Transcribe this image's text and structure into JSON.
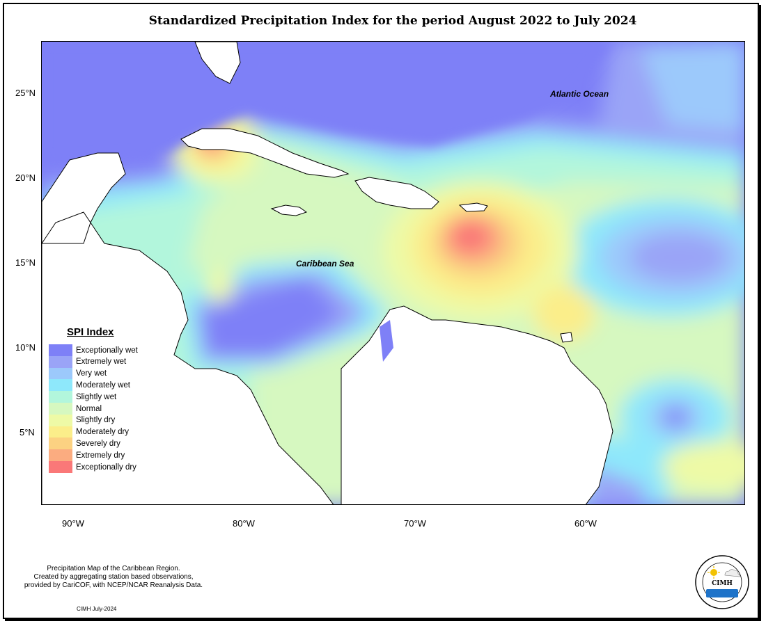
{
  "title": "Standardized Precipitation Index for the period August 2022 to July 2024",
  "map": {
    "labels": [
      "Atlantic Ocean",
      "Caribbean Sea"
    ],
    "lat_ticks": [
      "25°N",
      "20°N",
      "15°N",
      "10°N",
      "5°N"
    ],
    "lon_ticks": [
      "90°W",
      "80°W",
      "70°W",
      "60°W"
    ]
  },
  "legend": {
    "title": "SPI Index",
    "items": [
      {
        "label": "Exceptionally wet",
        "color": "#7e80f7"
      },
      {
        "label": "Extremely wet",
        "color": "#9aa4f7"
      },
      {
        "label": "Very wet",
        "color": "#9cc9fb"
      },
      {
        "label": "Moderately wet",
        "color": "#8ee8fb"
      },
      {
        "label": "Slightly wet",
        "color": "#b2f6dc"
      },
      {
        "label": "Normal",
        "color": "#d6f8c0"
      },
      {
        "label": "Slightly dry",
        "color": "#eefaa6"
      },
      {
        "label": "Moderately dry",
        "color": "#fbee8a"
      },
      {
        "label": "Severely dry",
        "color": "#fcd282"
      },
      {
        "label": "Extremely dry",
        "color": "#fbac80"
      },
      {
        "label": "Exceptionally dry",
        "color": "#fa7878"
      }
    ]
  },
  "credits": {
    "line1": "Precipitation Map of the Caribbean Region.",
    "line2": "Created by aggregating station based observations,",
    "line3": "provided by CariCOF, with NCEP/NCAR Reanalysis Data.",
    "date": "CIMH July-2024"
  },
  "logo": {
    "org": "Caribbean Institute for Meteorology and Hydrology",
    "abbr": "CIMH"
  }
}
